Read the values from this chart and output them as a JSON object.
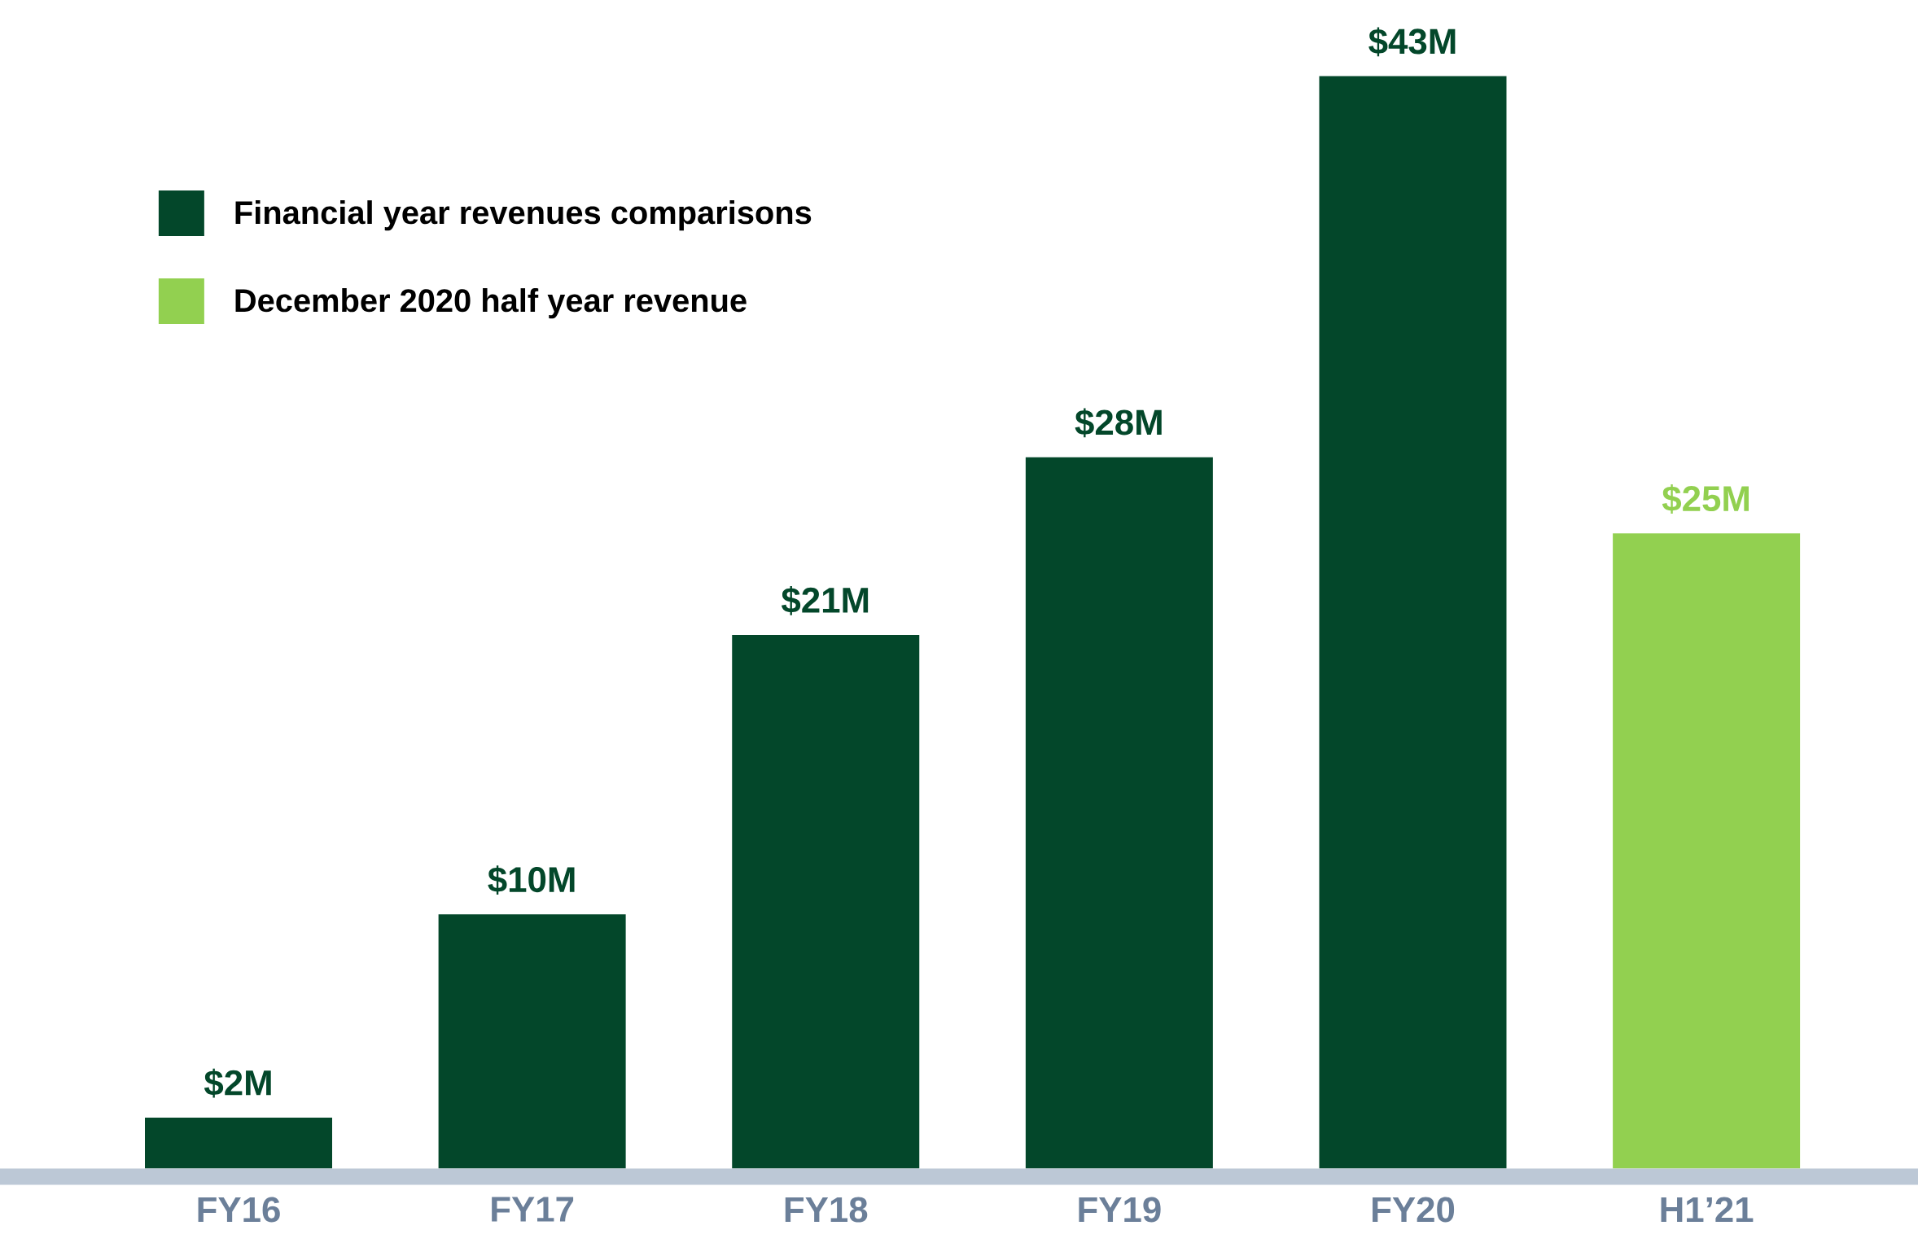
{
  "chart_data": {
    "type": "bar",
    "categories": [
      "FY16",
      "FY17",
      "FY18",
      "FY19",
      "FY20",
      "H1’21"
    ],
    "series": [
      {
        "name": "Financial year revenues comparisons",
        "color": "#03472a",
        "values": [
          2,
          10,
          21,
          28,
          43,
          null
        ],
        "value_labels": [
          "$2M",
          "$10M",
          "$21M",
          "$28M",
          "$43M",
          null
        ]
      },
      {
        "name": "December 2020 half year revenue",
        "color": "#92d050",
        "values": [
          null,
          null,
          null,
          null,
          null,
          25
        ],
        "value_labels": [
          null,
          null,
          null,
          null,
          null,
          "$25M"
        ]
      }
    ],
    "legend": "top left"
  }
}
